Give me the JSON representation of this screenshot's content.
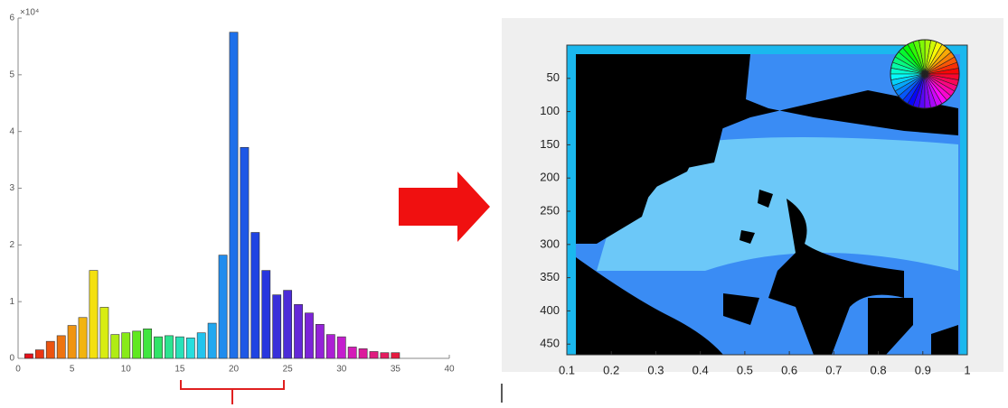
{
  "chart_data": [
    {
      "type": "bar",
      "x": [
        1,
        2,
        3,
        4,
        5,
        6,
        7,
        8,
        9,
        10,
        11,
        12,
        13,
        14,
        15,
        16,
        17,
        18,
        19,
        20,
        21,
        22,
        23,
        24,
        25,
        26,
        27,
        28,
        29,
        30,
        31,
        32,
        33,
        34,
        35
      ],
      "values": [
        0.08,
        0.15,
        0.3,
        0.4,
        0.58,
        0.72,
        1.55,
        0.9,
        0.42,
        0.45,
        0.48,
        0.52,
        0.38,
        0.4,
        0.38,
        0.36,
        0.45,
        0.62,
        1.82,
        5.75,
        3.72,
        2.22,
        1.55,
        1.12,
        1.2,
        0.95,
        0.8,
        0.6,
        0.42,
        0.38,
        0.2,
        0.17,
        0.12,
        0.1,
        0.1
      ],
      "colors": [
        "#e8101a",
        "#ea3412",
        "#ec5410",
        "#ee7410",
        "#f09410",
        "#f2b410",
        "#f4e010",
        "#d8ec12",
        "#b0ec14",
        "#88ea18",
        "#60e820",
        "#40e640",
        "#30e468",
        "#2ce490",
        "#28e2b8",
        "#26dede",
        "#24c4ee",
        "#22a8f0",
        "#208cee",
        "#1e70ea",
        "#1e58e6",
        "#2044e2",
        "#2836de",
        "#3830da",
        "#4c2cd8",
        "#6428d8",
        "#7c24d8",
        "#9422d8",
        "#ac20d4",
        "#c41ece",
        "#d41cb8",
        "#dc1c9c",
        "#e01c80",
        "#e41c60",
        "#e61a40"
      ],
      "xlim": [
        0,
        40
      ],
      "xticks": [
        0,
        5,
        10,
        15,
        20,
        25,
        30,
        35,
        40
      ],
      "ylim": [
        0,
        6
      ],
      "yticks": [
        0,
        1,
        2,
        3,
        4,
        5,
        6
      ],
      "y_multiplier": "×10⁴"
    },
    {
      "type": "image",
      "xlim": [
        0.1,
        1
      ],
      "xticks": [
        0.1,
        0.2,
        0.3,
        0.4,
        0.5,
        0.6,
        0.7,
        0.8,
        0.9,
        1
      ],
      "ylim": [
        0,
        466
      ],
      "yticks": [
        50,
        100,
        150,
        200,
        250,
        300,
        350,
        400,
        450
      ],
      "y_inverted": true
    }
  ]
}
